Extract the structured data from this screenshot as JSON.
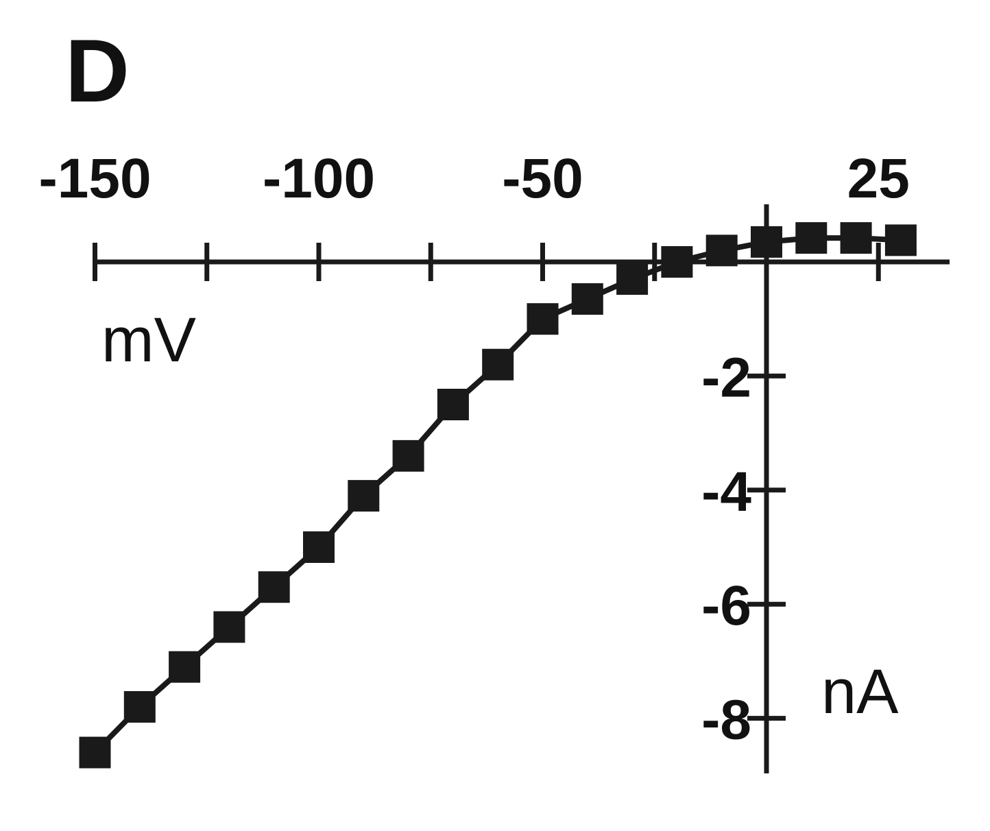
{
  "panel_label": "D",
  "chart_data": {
    "type": "line",
    "xlabel": "mV",
    "ylabel": "nA",
    "xlim": [
      -150,
      25
    ],
    "ylim": [
      -9,
      0.5
    ],
    "x_axis_position": "top, crossing y = 0",
    "y_axis_position": "right, crossing x = 0",
    "x_ticks": [
      -150,
      -125,
      -100,
      -75,
      -50,
      -25,
      0,
      25
    ],
    "x_tick_labels": [
      {
        "value": -150,
        "label": "-150"
      },
      {
        "value": -100,
        "label": "-100"
      },
      {
        "value": -50,
        "label": "-50"
      },
      {
        "value": 25,
        "label": "25"
      }
    ],
    "y_ticks": [
      -2,
      -4,
      -6,
      -8
    ],
    "y_tick_labels": [
      {
        "value": -2,
        "label": "-2"
      },
      {
        "value": -4,
        "label": "-4"
      },
      {
        "value": -6,
        "label": "-6"
      },
      {
        "value": -8,
        "label": "-8"
      }
    ],
    "grid": false,
    "marker": "filled-square",
    "color": "#1a1a1a",
    "series": [
      {
        "x": [
          -150,
          -140,
          -130,
          -120,
          -110,
          -100,
          -90,
          -80,
          -70,
          -60,
          -50,
          -40,
          -30,
          -20,
          -10,
          0,
          10,
          20,
          30
        ],
        "y": [
          -8.6,
          -7.8,
          -7.1,
          -6.4,
          -5.7,
          -5.0,
          -4.1,
          -3.4,
          -2.5,
          -1.8,
          -1.0,
          -0.65,
          -0.3,
          0.0,
          0.2,
          0.35,
          0.42,
          0.42,
          0.38
        ]
      }
    ]
  }
}
